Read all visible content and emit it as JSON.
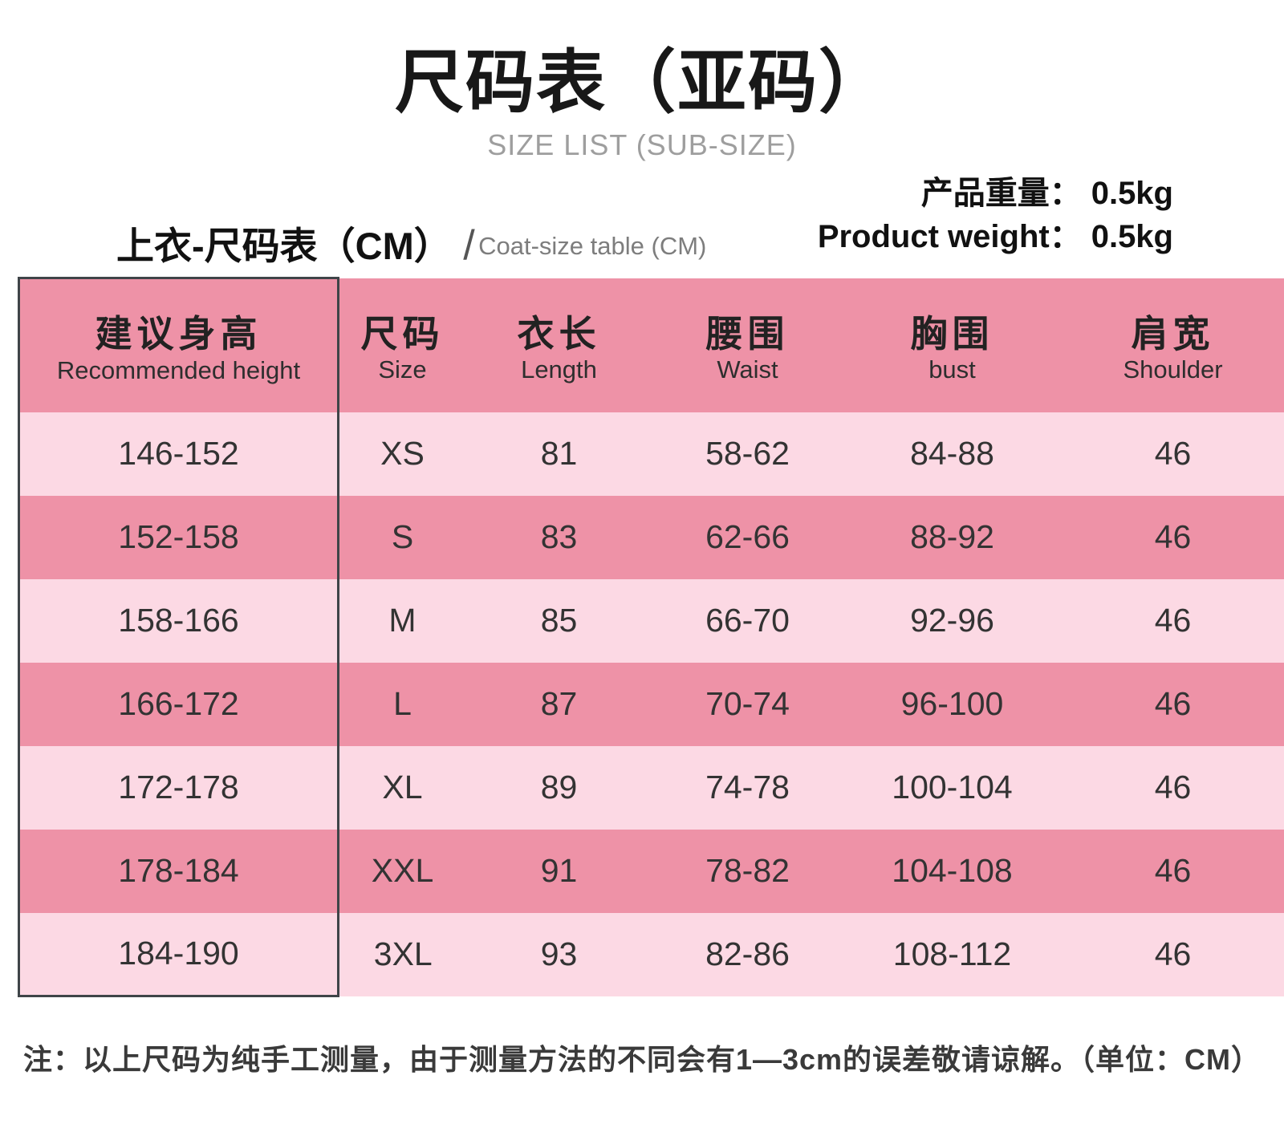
{
  "page": {
    "title": "尺码表（亚码）",
    "subtitle": "SIZE LIST (SUB-SIZE)",
    "section_title_cn": "上衣-尺码表（CM）",
    "section_divider": "/",
    "section_title_en": "Coat-size table (CM)",
    "footnote": "注：以上尺码为纯手工测量，由于测量方法的不同会有1—3cm的误差敬请谅解。（单位：CM）"
  },
  "weight": {
    "label_cn": "产品重量：",
    "value_cn": "0.5kg",
    "label_en": "Product weight：",
    "value_en": "0.5kg"
  },
  "colors": {
    "row_dark_pink": "#ee92a7",
    "row_light_pink": "#fcd9e4",
    "first_column_border": "#3f4448",
    "subtitle_gray": "#9e9e9e",
    "text_dark": "#333333"
  },
  "table": {
    "columns": [
      {
        "cn": "建议身高",
        "en": "Recommended height"
      },
      {
        "cn": "尺码",
        "en": "Size"
      },
      {
        "cn": "衣长",
        "en": "Length"
      },
      {
        "cn": "腰围",
        "en": "Waist"
      },
      {
        "cn": "胸围",
        "en": "bust"
      },
      {
        "cn": "肩宽",
        "en": "Shoulder"
      }
    ],
    "rows": [
      [
        "146-152",
        "XS",
        "81",
        "58-62",
        "84-88",
        "46"
      ],
      [
        "152-158",
        "S",
        "83",
        "62-66",
        "88-92",
        "46"
      ],
      [
        "158-166",
        "M",
        "85",
        "66-70",
        "92-96",
        "46"
      ],
      [
        "166-172",
        "L",
        "87",
        "70-74",
        "96-100",
        "46"
      ],
      [
        "172-178",
        "XL",
        "89",
        "74-78",
        "100-104",
        "46"
      ],
      [
        "178-184",
        "XXL",
        "91",
        "78-82",
        "104-108",
        "46"
      ],
      [
        "184-190",
        "3XL",
        "93",
        "82-86",
        "108-112",
        "46"
      ]
    ]
  }
}
